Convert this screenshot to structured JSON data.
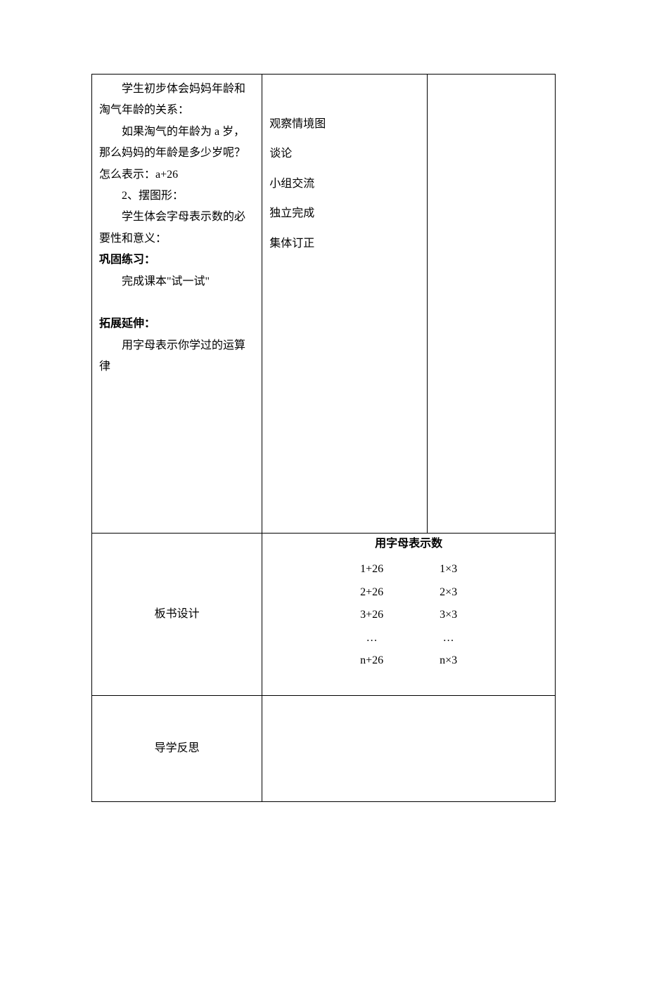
{
  "top": {
    "left": {
      "p1": "学生初步体会妈妈年龄和淘气年龄的关系：",
      "p2": "如果淘气的年龄为 a 岁，那么妈妈的年龄是多少岁呢？怎么表示：a+26",
      "p3": "2、摆图形：",
      "p4": "学生体会字母表示数的必要性和意义：",
      "h1": "巩固练习：",
      "p5": "完成课本\"试一试\"",
      "h2": "拓展延伸：",
      "p6": "用字母表示你学过的运算律"
    },
    "mid": {
      "l1": "观察情境图",
      "l2": "谈论",
      "l3": "小组交流",
      "l4": "独立完成",
      "l5": "集体订正"
    }
  },
  "board": {
    "label": "板书设计",
    "title": "用字母表示数",
    "colA": [
      "1+26",
      "2+26",
      "3+26",
      "…",
      "n+26"
    ],
    "colB": [
      "1×3",
      "2×3",
      "3×3",
      "…",
      "n×3"
    ]
  },
  "reflect": {
    "label": "导学反思"
  }
}
